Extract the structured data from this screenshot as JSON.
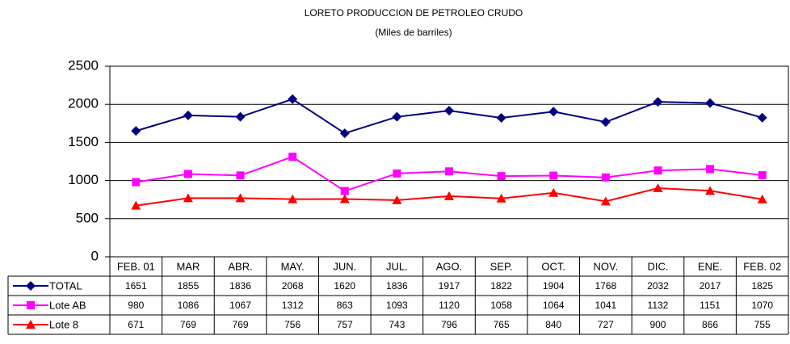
{
  "chart_data": {
    "type": "line",
    "title": "LORETO PRODUCCION DE PETROLEO CRUDO",
    "subtitle": "(Miles de barriles)",
    "categories": [
      "FEB. 01",
      "MAR",
      "ABR.",
      "MAY.",
      "JUN.",
      "JUL.",
      "AGO.",
      "SEP.",
      "OCT.",
      "NOV.",
      "DIC.",
      "ENE.",
      "FEB. 02"
    ],
    "series": [
      {
        "name": "TOTAL",
        "color": "#000080",
        "marker": "diamond",
        "values": [
          1651,
          1855,
          1836,
          2068,
          1620,
          1836,
          1917,
          1822,
          1904,
          1768,
          2032,
          2017,
          1825
        ]
      },
      {
        "name": "Lote AB",
        "color": "#ff00ff",
        "marker": "square",
        "values": [
          980,
          1086,
          1067,
          1312,
          863,
          1093,
          1120,
          1058,
          1064,
          1041,
          1132,
          1151,
          1070
        ]
      },
      {
        "name": "Lote 8",
        "color": "#ff0000",
        "marker": "triangle",
        "values": [
          671,
          769,
          769,
          756,
          757,
          743,
          796,
          765,
          840,
          727,
          900,
          866,
          755
        ]
      }
    ],
    "ylim": [
      0,
      2500
    ],
    "yticks": [
      0,
      500,
      1000,
      1500,
      2000,
      2500
    ],
    "grid": true
  }
}
